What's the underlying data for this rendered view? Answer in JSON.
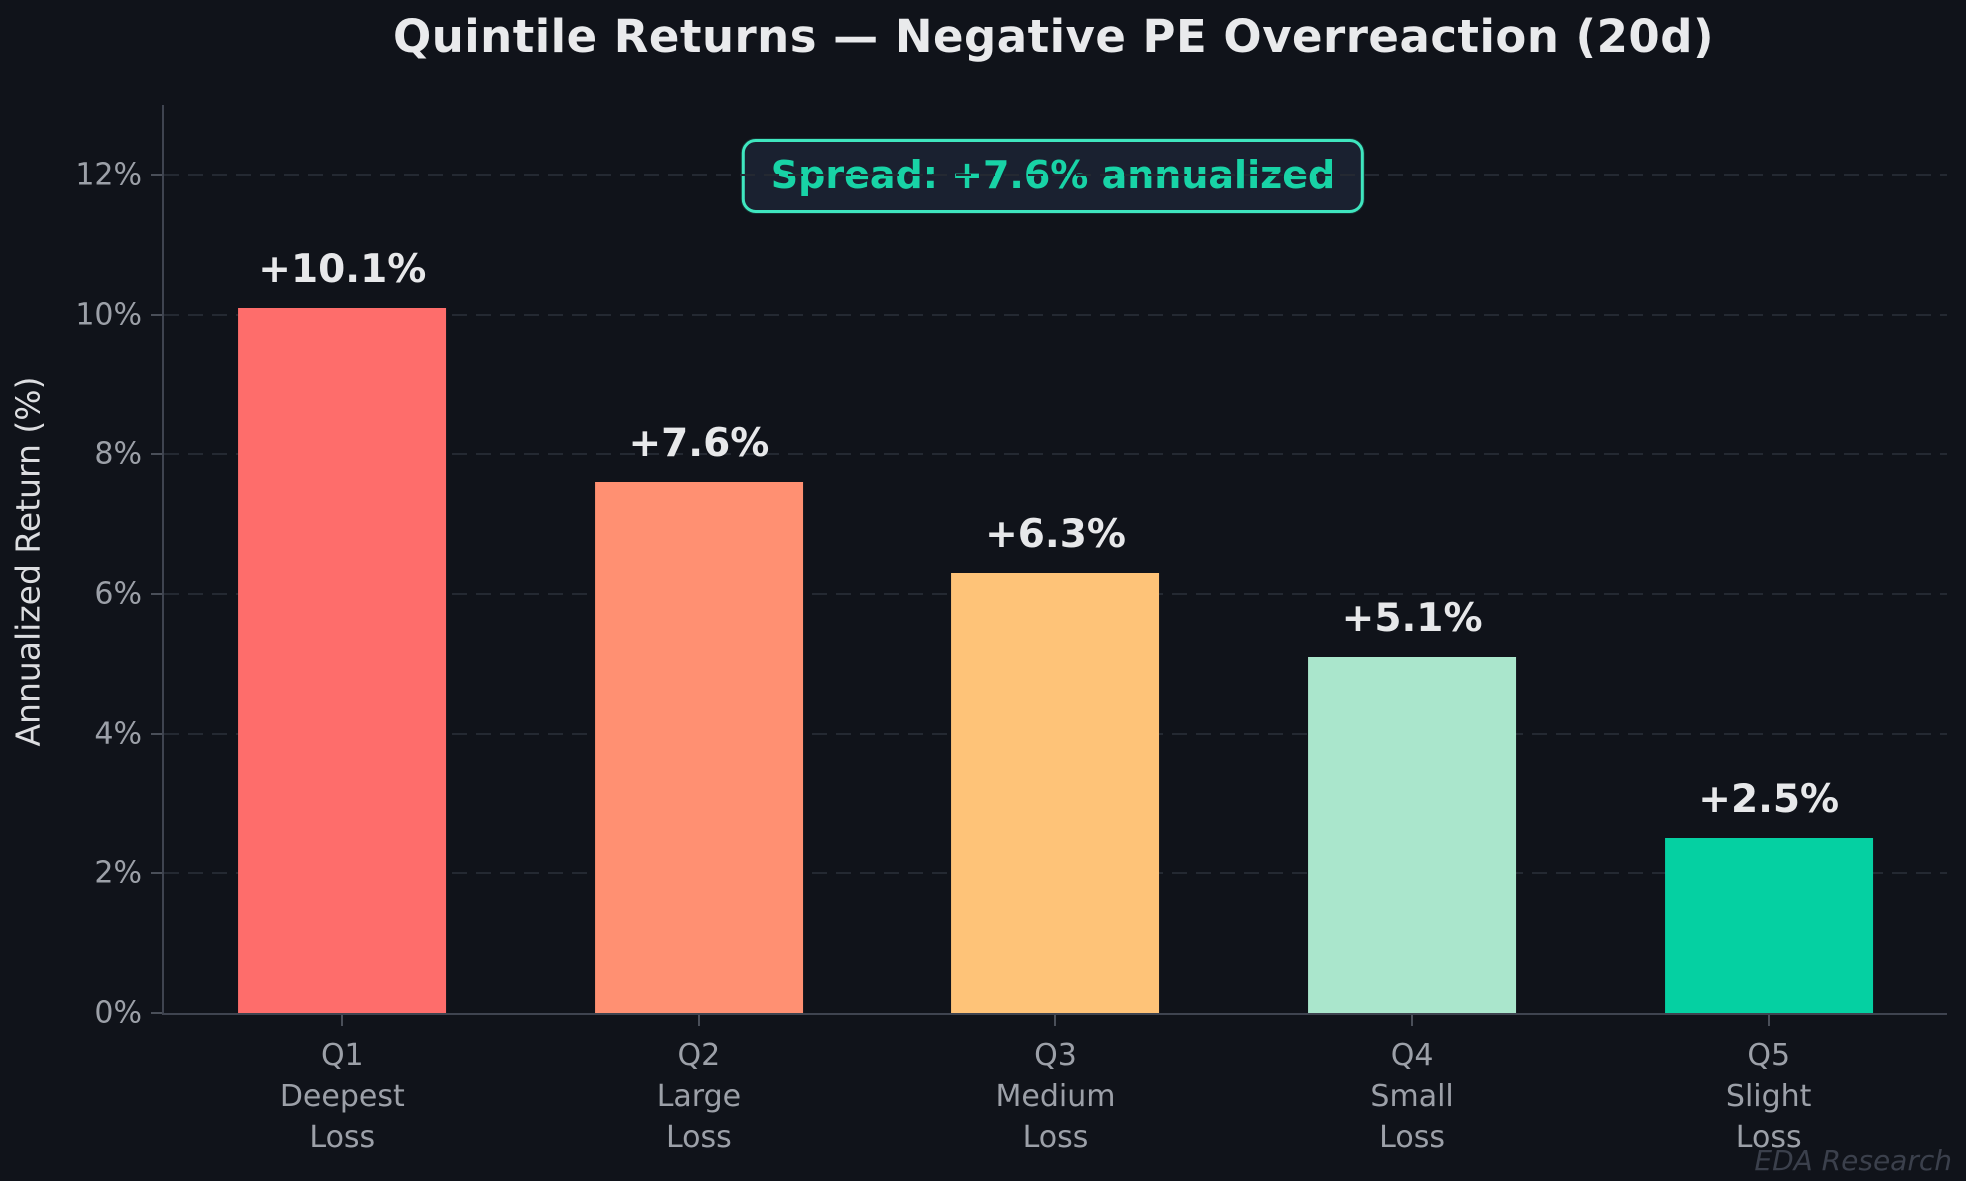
{
  "title": "Quintile Returns — Negative PE Overreaction (20d)",
  "badge": {
    "label": "Spread: +7.6% annualized"
  },
  "watermark": "EDA Research",
  "chart_data": {
    "type": "bar",
    "title": "Quintile Returns — Negative PE Overreaction (20d)",
    "categories": [
      "Q1\nDeepest\nLoss",
      "Q2\nLarge\nLoss",
      "Q3\nMedium\nLoss",
      "Q4\nSmall\nLoss",
      "Q5\nSlight\nLoss"
    ],
    "values": [
      10.1,
      7.6,
      6.3,
      5.1,
      2.5
    ],
    "bar_labels": [
      "+10.1%",
      "+7.6%",
      "+6.3%",
      "+5.1%",
      "+2.5%"
    ],
    "bar_colors": [
      "#fe6d6b",
      "#ff9072",
      "#fec378",
      "#aae6cc",
      "#05d0a2"
    ],
    "xlabel": "",
    "ylabel": "Annualized Return (%)",
    "ylim": [
      0,
      13
    ],
    "yticks": [
      0,
      2,
      4,
      6,
      8,
      10,
      12
    ],
    "ytick_labels": [
      "0%",
      "2%",
      "4%",
      "6%",
      "8%",
      "10%",
      "12%"
    ],
    "grid": "horizontal-dashed",
    "legend": "none",
    "annotation": "Spread: +7.6% annualized",
    "annotation_color": "#18d3a6"
  },
  "colors": {
    "background": "#10131a",
    "badge_border": "#3fe6bf",
    "badge_background": "#1a2130",
    "bar_q1": "#fe6d6b",
    "bar_q2": "#ff9072",
    "bar_q3": "#fec378",
    "bar_q4": "#aae6cc",
    "bar_q5": "#05d0a2",
    "gridline": "#242932",
    "spine": "#3f4450",
    "tick_text": "#9ca0a8",
    "title_text": "#e9eaec",
    "watermark_text": "#3b404c"
  }
}
